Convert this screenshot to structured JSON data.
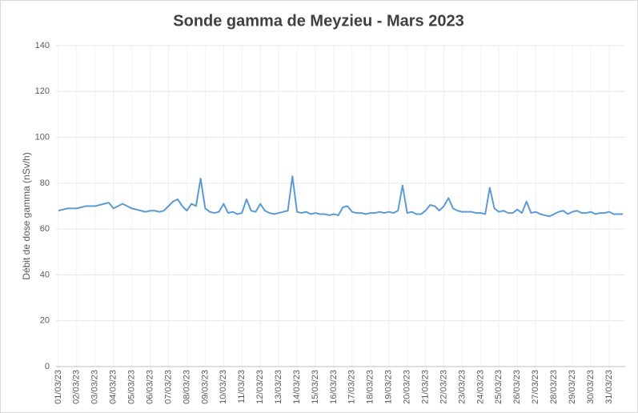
{
  "chart_data": {
    "type": "line",
    "title": "Sonde gamma de Meyzieu - Mars 2023",
    "y_label": "Débit de dose gamma (nSv/h)",
    "categories": [
      "01/03/23",
      null,
      null,
      null,
      "02/03/23",
      null,
      null,
      null,
      "03/03/23",
      null,
      null,
      null,
      "04/03/23",
      null,
      null,
      null,
      "05/03/23",
      null,
      null,
      null,
      "06/03/23",
      null,
      null,
      null,
      "07/03/23",
      null,
      null,
      null,
      "08/03/23",
      null,
      null,
      null,
      "09/03/23",
      null,
      null,
      null,
      "10/03/23",
      null,
      null,
      null,
      "11/03/23",
      null,
      null,
      null,
      "12/03/23",
      null,
      null,
      null,
      "13/03/23",
      null,
      null,
      null,
      "14/03/23",
      null,
      null,
      null,
      "15/03/23",
      null,
      null,
      null,
      "16/03/23",
      null,
      null,
      null,
      "17/03/23",
      null,
      null,
      null,
      "18/03/23",
      null,
      null,
      null,
      "19/03/23",
      null,
      null,
      null,
      "20/03/23",
      null,
      null,
      null,
      "21/03/23",
      null,
      null,
      null,
      "22/03/23",
      null,
      null,
      null,
      "23/03/23",
      null,
      null,
      null,
      "24/03/23",
      null,
      null,
      null,
      "25/03/23",
      null,
      null,
      null,
      "26/03/23",
      null,
      null,
      null,
      "27/03/23",
      null,
      null,
      null,
      "28/03/23",
      null,
      null,
      null,
      "29/03/23",
      null,
      null,
      null,
      "30/03/23",
      null,
      null,
      null,
      "31/03/23",
      null,
      null,
      null
    ],
    "series": [
      {
        "color": "#5b9bd5",
        "values": [
          68,
          68.5,
          69,
          69,
          69,
          69.5,
          70,
          70,
          70,
          70.5,
          71,
          71.5,
          69,
          70,
          71,
          70,
          69,
          68.5,
          68,
          67.5,
          68,
          68,
          67.5,
          68,
          70,
          72,
          73,
          70,
          68,
          71,
          70,
          82,
          69,
          67.5,
          67,
          67.5,
          71,
          67,
          67.5,
          66.5,
          67,
          73,
          68,
          67.5,
          71,
          68,
          67,
          66.5,
          67,
          67.5,
          68,
          83,
          67.5,
          67,
          67.5,
          66.5,
          67,
          66.5,
          66.5,
          66,
          66.5,
          66,
          69.5,
          70,
          67.5,
          67,
          67,
          66.5,
          67,
          67,
          67.5,
          67,
          67.5,
          67,
          68,
          79,
          67,
          67.5,
          66.5,
          66.5,
          68,
          70.5,
          70,
          68,
          70,
          73.5,
          69,
          68,
          67.5,
          67.5,
          67.5,
          67,
          67,
          66.5,
          78,
          69,
          67.5,
          68,
          67,
          67,
          68.5,
          67,
          72,
          67,
          67.5,
          66.5,
          66,
          65.5,
          66.5,
          67.5,
          68,
          66.5,
          67.5,
          68,
          67,
          67,
          67.5,
          66.5,
          67,
          67,
          67.5,
          66.5,
          66.5,
          66.5
        ]
      }
    ],
    "ylim": [
      0,
      140
    ],
    "yticks": [
      0,
      20,
      40,
      60,
      80,
      100,
      120,
      140
    ],
    "grid": true
  }
}
